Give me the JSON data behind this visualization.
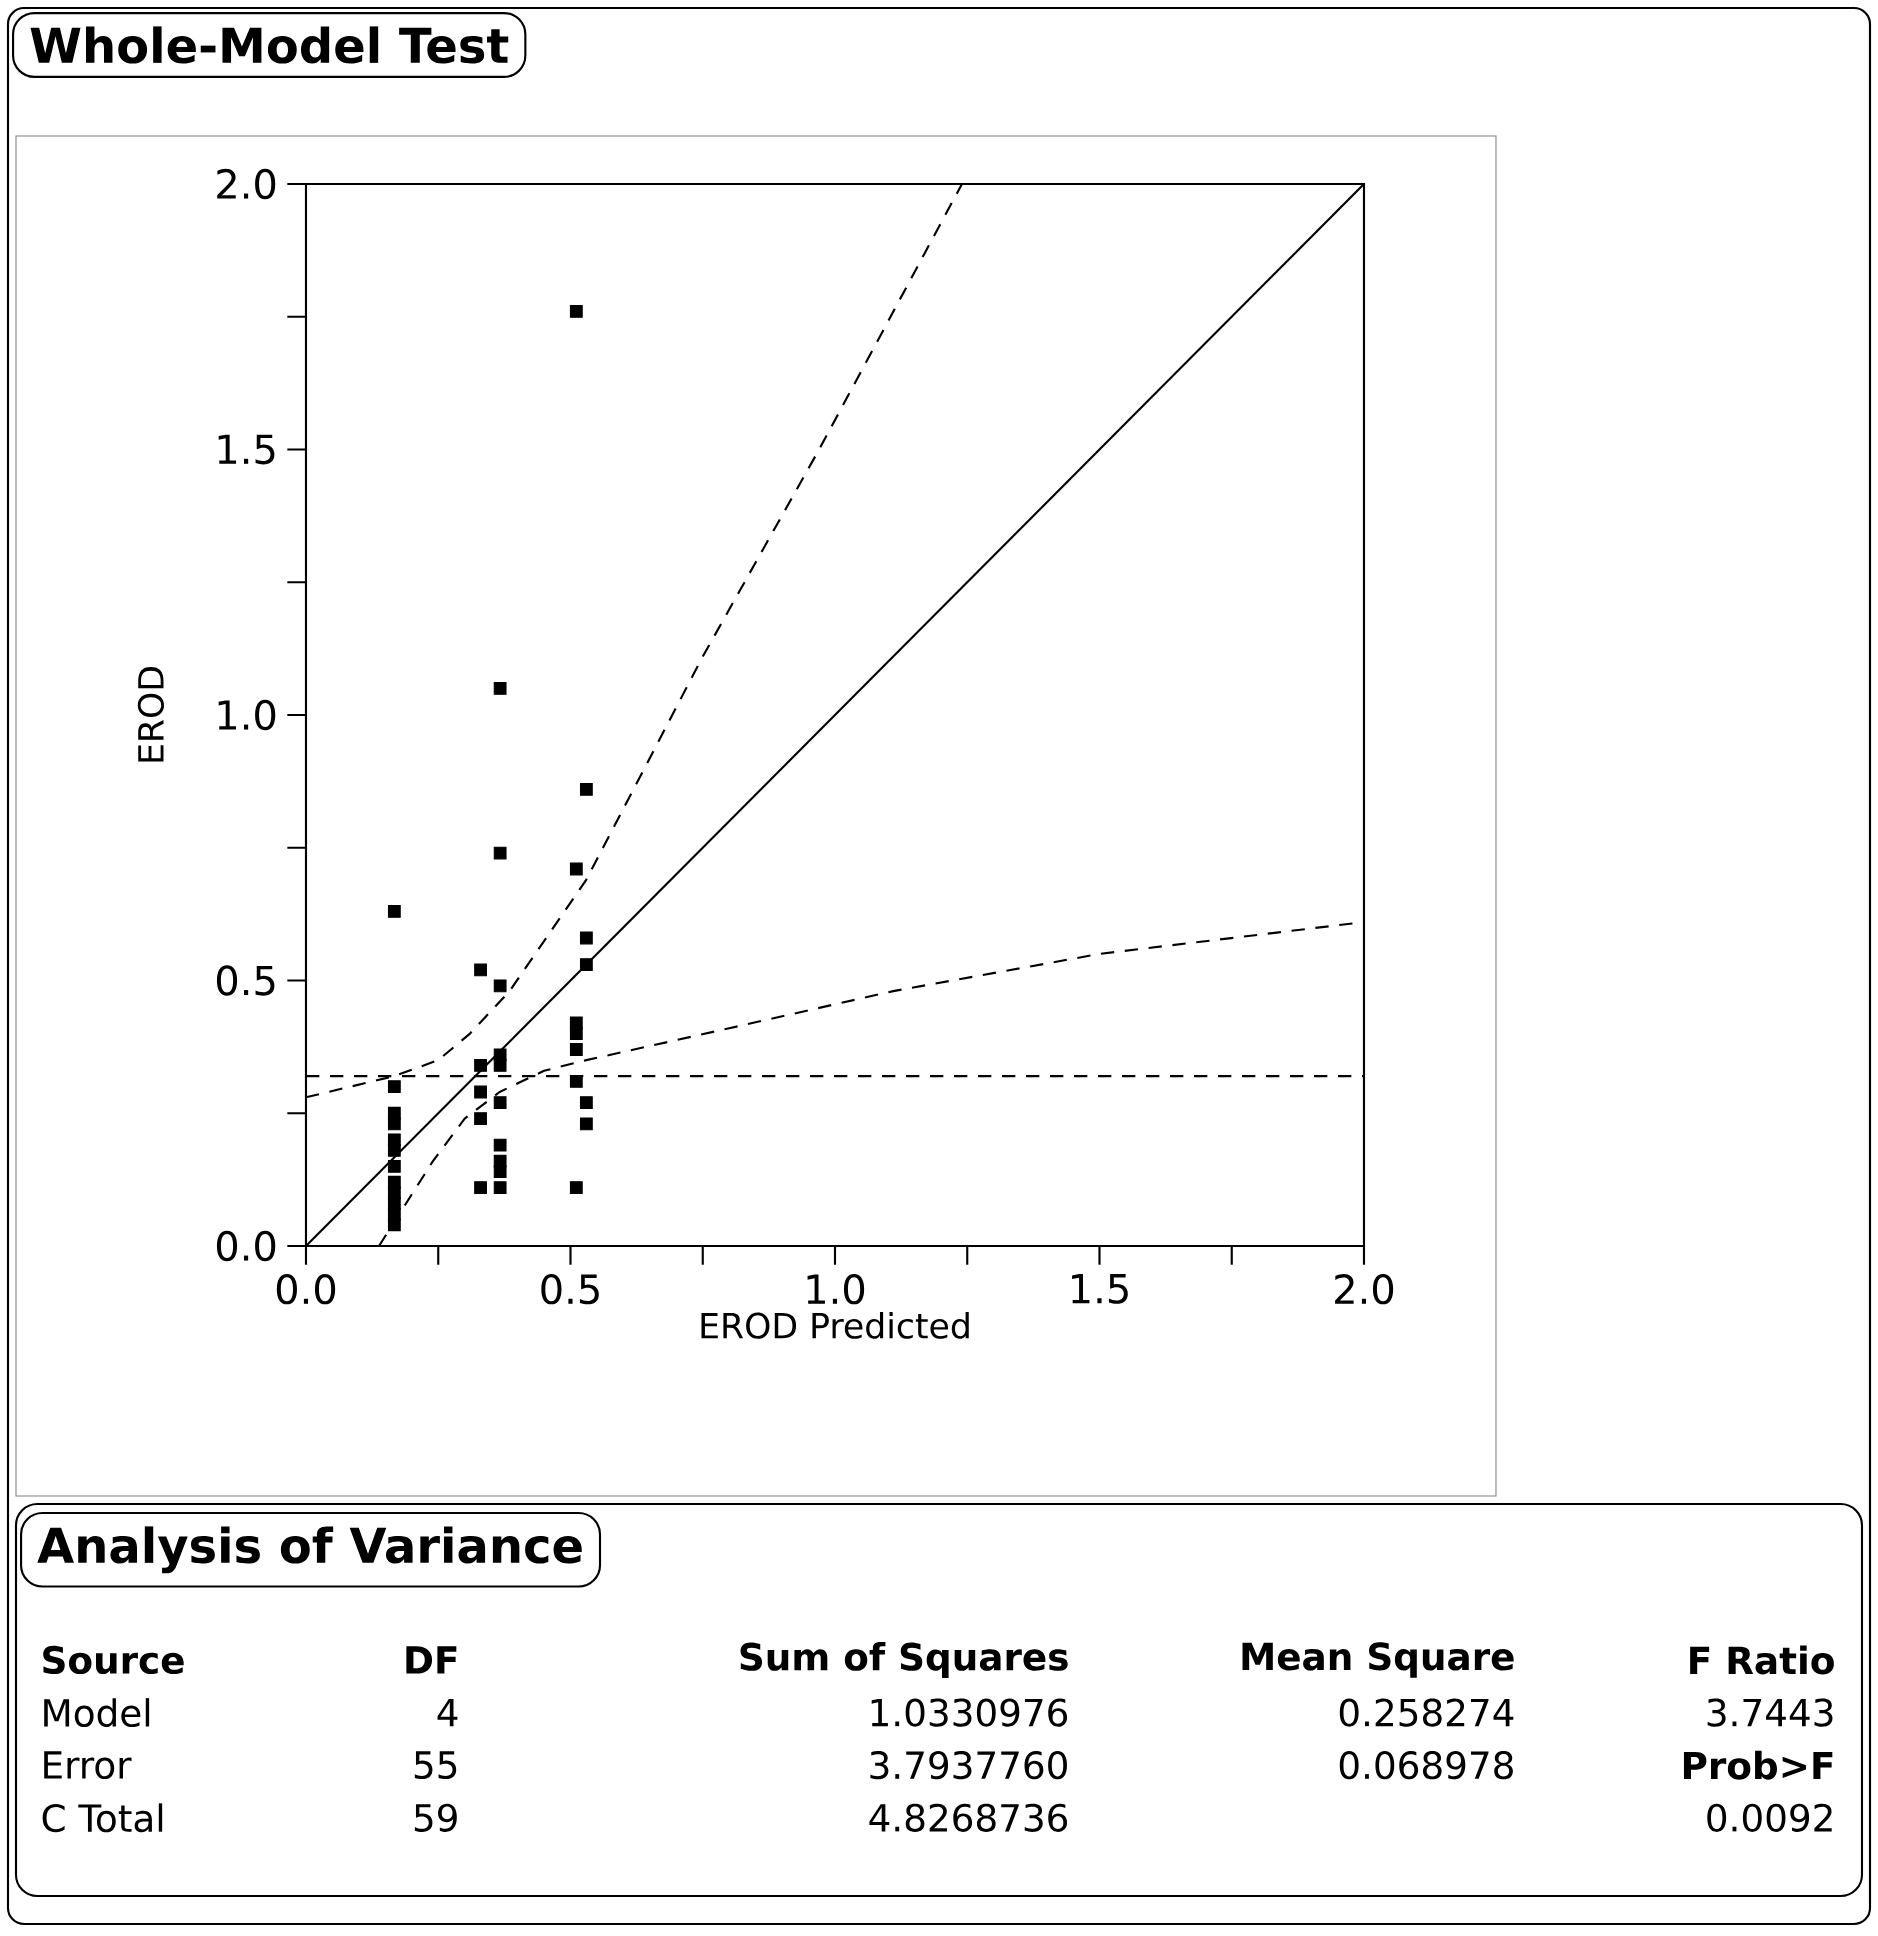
{
  "chart_data": [
    {
      "type": "scatter",
      "title": "Whole-Model Test",
      "xlabel": "EROD  Predicted",
      "ylabel": "EROD",
      "xlim": [
        0,
        2
      ],
      "ylim": [
        0,
        2
      ],
      "xticks": [
        {
          "value": 0,
          "label": "0.0"
        },
        {
          "value": 0.25,
          "label": null
        },
        0.5,
        {
          "value": 0.75,
          "label": null
        },
        {
          "value": 1,
          "label": "1.0"
        },
        {
          "value": 1.25,
          "label": null
        },
        1.5,
        {
          "value": 1.75,
          "label": null
        },
        {
          "value": 2,
          "label": "2.0"
        }
      ],
      "yticks": [
        {
          "value": 0,
          "label": "0.0"
        },
        {
          "value": 0.25,
          "label": null
        },
        0.5,
        {
          "value": 0.75,
          "label": null
        },
        {
          "value": 1,
          "label": "1.0"
        },
        {
          "value": 1.25,
          "label": null
        },
        1.5,
        {
          "value": 1.75,
          "label": null
        },
        {
          "value": 2,
          "label": "2.0"
        }
      ],
      "series": [
        {
          "type": "scatter",
          "color": "#000000",
          "marker": "square",
          "x": [
            0.167,
            0.167,
            0.167,
            0.167,
            0.167,
            0.167,
            0.167,
            0.167,
            0.167,
            0.167,
            0.167,
            0.167,
            0.33,
            0.33,
            0.33,
            0.33,
            0.33,
            0.367,
            0.367,
            0.367,
            0.367,
            0.367,
            0.367,
            0.367,
            0.367,
            0.367,
            0.367,
            0.511,
            0.511,
            0.511,
            0.511,
            0.511,
            0.511,
            0.511,
            0.53,
            0.53,
            0.53,
            0.53,
            0.53
          ],
          "values": [
            0.63,
            0.3,
            0.25,
            0.23,
            0.2,
            0.18,
            0.15,
            0.12,
            0.1,
            0.08,
            0.06,
            0.04,
            0.52,
            0.34,
            0.29,
            0.24,
            0.11,
            1.05,
            0.74,
            0.49,
            0.36,
            0.34,
            0.27,
            0.19,
            0.16,
            0.14,
            0.11,
            1.76,
            0.71,
            0.42,
            0.4,
            0.37,
            0.31,
            0.11,
            0.86,
            0.58,
            0.53,
            0.27,
            0.23
          ]
        },
        {
          "type": "line",
          "color": "#000000",
          "line_style": "solid",
          "x": [
            0,
            2
          ],
          "values": [
            0,
            2
          ]
        },
        {
          "type": "line",
          "color": "#000000",
          "line_style": "dashed",
          "x": [
            0,
            0.167,
            0.25,
            0.31,
            0.385,
            0.53,
            0.75,
            0.97,
            1.24
          ],
          "values": [
            0.28,
            0.32,
            0.35,
            0.4,
            0.48,
            0.69,
            1.11,
            1.5,
            2.0
          ]
        },
        {
          "type": "line",
          "color": "#000000",
          "line_style": "dashed",
          "x": [
            0.138,
            0.24,
            0.3,
            0.366,
            0.45,
            0.53,
            0.8,
            1.11,
            1.5,
            2
          ],
          "values": [
            0,
            0.16,
            0.24,
            0.29,
            0.33,
            0.35,
            0.41,
            0.48,
            0.55,
            0.61
          ]
        }
      ],
      "ref_lines": [
        {
          "axis": "y",
          "value": 0.32,
          "color": "#000000",
          "line_style": "dashed"
        }
      ]
    },
    {
      "type": "other",
      "title": "Analysis of Variance",
      "annotations": [
        "Source",
        "DF",
        "Sum of Squares",
        "Mean Square",
        "F Ratio",
        "Model",
        "4",
        "1.0330976",
        "0.258274",
        "3.7443",
        "Error",
        "55",
        "3.7937760",
        "0.068978",
        "Prob>F",
        "C Total",
        "59",
        "4.8268736",
        "0.0092"
      ]
    }
  ]
}
